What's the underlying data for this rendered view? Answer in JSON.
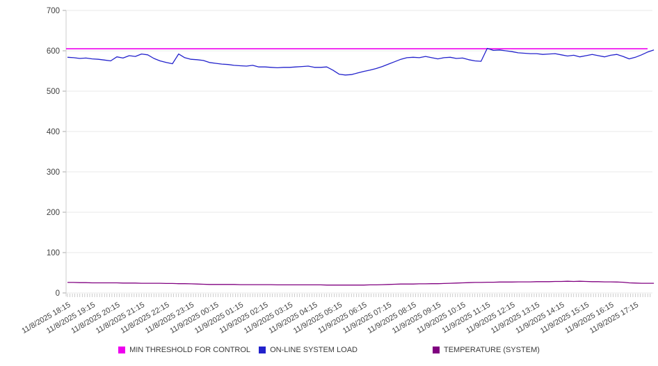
{
  "chart_data": {
    "type": "line",
    "title": "",
    "xlabel": "",
    "ylabel": "",
    "ylim": [
      0,
      700
    ],
    "y_ticks": [
      0,
      100,
      200,
      300,
      400,
      500,
      600,
      700
    ],
    "grid": "horizontal",
    "legend_position": "bottom",
    "x_labels": [
      "11/8/2025 18:15",
      "11/8/2025 19:15",
      "11/8/2025 20:15",
      "11/8/2025 21:15",
      "11/8/2025 22:15",
      "11/8/2025 23:15",
      "11/9/2025 00:15",
      "11/9/2025 01:15",
      "11/9/2025 02:15",
      "11/9/2025 03:15",
      "11/9/2025 04:15",
      "11/9/2025 05:15",
      "11/9/2025 06:15",
      "11/9/2025 07:15",
      "11/9/2025 08:15",
      "11/9/2025 09:15",
      "11/9/2025 10:15",
      "11/9/2025 11:15",
      "11/9/2025 12:15",
      "11/9/2025 13:15",
      "11/9/2025 14:15",
      "11/9/2025 15:15",
      "11/9/2025 16:15",
      "11/9/2025 17:15"
    ],
    "points_per_hour": 4,
    "axis_color": "#cccccc",
    "grid_color": "#e8e8e8",
    "tick_color": "#aaaaaa",
    "label_color": "#3f3f3f",
    "series": [
      {
        "name": "MIN THRESHOLD FOR CONTROL",
        "color": "#ee00ee",
        "style": "threshold",
        "value": 605
      },
      {
        "name": "ON-LINE SYSTEM LOAD",
        "color": "#2222cc",
        "style": "line",
        "values": [
          584,
          583,
          581,
          582,
          580,
          579,
          577,
          575,
          585,
          582,
          588,
          586,
          592,
          590,
          581,
          575,
          571,
          568,
          592,
          583,
          579,
          578,
          576,
          571,
          569,
          567,
          566,
          564,
          563,
          562,
          564,
          560,
          560,
          559,
          558,
          559,
          559,
          560,
          561,
          562,
          559,
          559,
          560,
          552,
          542,
          540,
          541,
          545,
          549,
          552,
          556,
          561,
          567,
          573,
          579,
          583,
          584,
          583,
          586,
          583,
          580,
          583,
          584,
          581,
          582,
          578,
          575,
          574,
          606,
          601,
          602,
          600,
          598,
          595,
          594,
          593,
          593,
          591,
          592,
          593,
          590,
          587,
          589,
          585,
          588,
          591,
          588,
          585,
          589,
          591,
          586,
          580,
          584,
          590,
          597,
          602
        ]
      },
      {
        "name": "TEMPERATURE (SYSTEM)",
        "color": "#800080",
        "style": "line",
        "values": [
          26,
          26,
          25.5,
          25.5,
          25,
          25,
          25,
          25,
          25,
          24.5,
          24.5,
          24.5,
          24,
          24,
          24,
          24,
          23.5,
          23.5,
          23,
          23,
          22.5,
          22,
          21.5,
          21,
          21,
          21,
          21,
          21,
          20.5,
          20.5,
          20.5,
          20.5,
          20.5,
          20.5,
          20,
          20,
          20,
          20,
          20,
          20,
          20,
          20,
          19.5,
          19.5,
          19.5,
          19.5,
          19.5,
          19.5,
          19.5,
          20,
          20,
          20.5,
          21,
          21.5,
          22,
          22,
          22,
          22.5,
          22.5,
          23,
          23,
          23.5,
          24,
          24.5,
          25,
          25.5,
          26,
          26,
          26.5,
          26.5,
          27,
          27,
          27,
          27.5,
          27.5,
          27.5,
          28,
          28,
          28,
          28.5,
          28.5,
          29,
          28.5,
          29,
          28.5,
          28,
          28,
          27.5,
          27.5,
          27,
          26.5,
          25,
          24.5,
          24,
          24,
          24
        ]
      }
    ]
  },
  "legend": {
    "items": [
      {
        "label": "MIN THRESHOLD FOR CONTROL",
        "color": "#ee00ee"
      },
      {
        "label": "ON-LINE SYSTEM LOAD",
        "color": "#2222cc"
      },
      {
        "label": "TEMPERATURE (SYSTEM)",
        "color": "#800080"
      }
    ]
  }
}
